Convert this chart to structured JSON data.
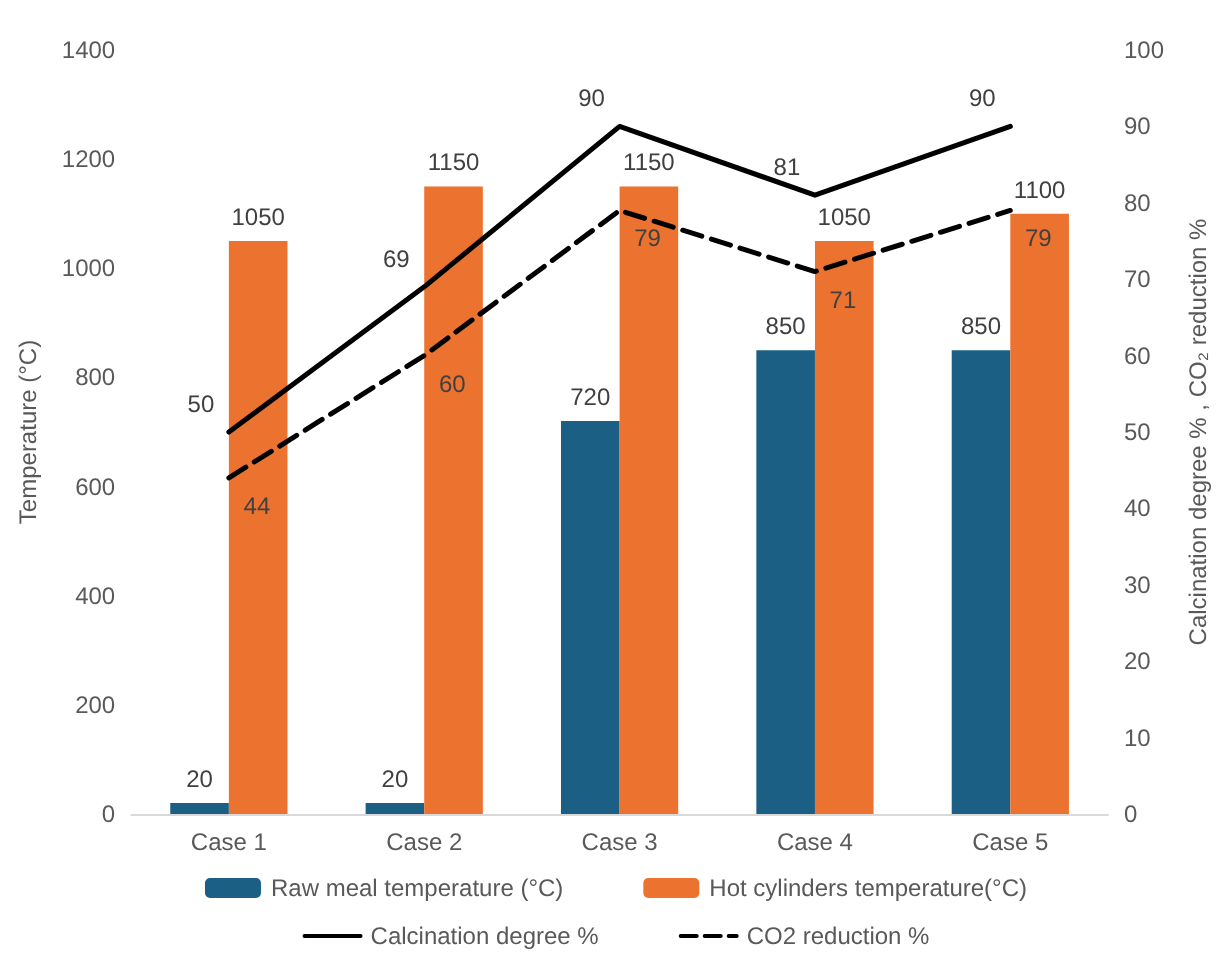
{
  "chart_data": {
    "type": "bar",
    "categories": [
      "Case 1",
      "Case 2",
      "Case 3",
      "Case 4",
      "Case 5"
    ],
    "series": [
      {
        "name": "Raw meal temperature (°C)",
        "color": "#1b5f85",
        "values": [
          20,
          20,
          720,
          850,
          850
        ]
      },
      {
        "name": "Hot cylinders temperature(°C)",
        "color": "#ec7230",
        "values": [
          1050,
          1150,
          1150,
          1050,
          1100
        ]
      },
      {
        "name": "Calcination degree %",
        "type": "line",
        "axis": "y2",
        "color": "#000000",
        "line_style": "solid",
        "values": [
          50,
          69,
          90,
          81,
          90
        ]
      },
      {
        "name": "CO2 reduction %",
        "type": "line",
        "axis": "y2",
        "color": "#000000",
        "line_style": "dashed",
        "values": [
          44,
          60,
          79,
          71,
          79
        ]
      }
    ],
    "ylabel": "Temperature (°C)",
    "y2label": "Calcination degree % , CO₂ reduction %",
    "ylim": [
      0,
      1400
    ],
    "yticks": [
      0,
      200,
      400,
      600,
      800,
      1000,
      1200,
      1400
    ],
    "y2lim": [
      0,
      100
    ],
    "y2ticks": [
      0,
      10,
      20,
      30,
      40,
      50,
      60,
      70,
      80,
      90,
      100
    ],
    "legend": "bottom",
    "grid": false,
    "data_labels": true,
    "marker": "none"
  }
}
